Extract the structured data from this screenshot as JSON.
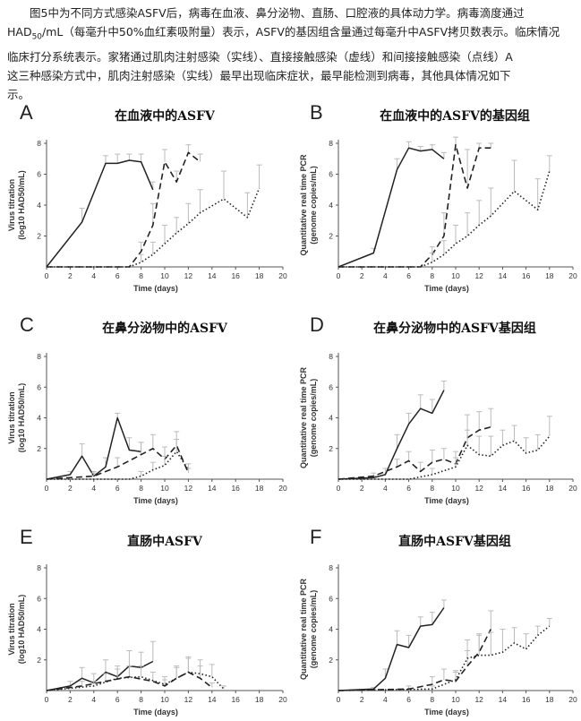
{
  "caption": {
    "line1": "图5中为不同方式感染ASFV后，病毒在血液、鼻分泌物、直肠、口腔液的具体动力学。病毒滴度通过",
    "line2a": "HAD",
    "line2sub": "50",
    "line2b": "/mL（每毫升中50%血红素吸附量）表示，ASFV的基因组含量通过每毫升中ASFV拷贝数表示。临床情况",
    "line3": "临床打分系统表示。家猪通过肌肉注射感染（实线）、直接接触感染（虚线）和间接接触感染（点线）A",
    "line4": "这三种感染方式中，肌肉注射感染（实线）最早出现临床症状，最早能检测到病毒，其他具体情况如下",
    "line5": "示。"
  },
  "colors": {
    "line": "#222222",
    "error": "#bbbbbb",
    "axis": "#555555"
  },
  "chart_data": [
    {
      "panel": "A",
      "type": "line",
      "title": "在血液中的ASFV",
      "xlabel": "Time (days)",
      "ylabel1": "Virus titration",
      "ylabel2": "(log10 HAD50/mL)",
      "xlim": [
        0,
        20
      ],
      "ylim": [
        0,
        8
      ],
      "xticks": [
        0,
        2,
        4,
        6,
        8,
        10,
        12,
        14,
        16,
        18,
        20
      ],
      "yticks": [
        2,
        4,
        6,
        8
      ],
      "series": [
        {
          "name": "intramuscular",
          "style": "solid",
          "x": [
            0,
            3,
            5,
            6,
            7,
            8,
            9
          ],
          "y": [
            0,
            2.9,
            6.7,
            6.7,
            6.9,
            6.8,
            5.0
          ],
          "err": [
            0,
            0.9,
            0.5,
            0.6,
            0.4,
            0.5,
            0.5
          ]
        },
        {
          "name": "direct contact",
          "style": "dashed",
          "x": [
            0,
            7,
            8,
            9,
            10,
            11,
            12,
            13
          ],
          "y": [
            0,
            0,
            1.0,
            2.7,
            6.8,
            5.5,
            7.4,
            6.8
          ],
          "err": [
            0,
            0,
            0.6,
            1.4,
            0.8,
            0.7,
            0.5,
            0.5
          ]
        },
        {
          "name": "indirect contact",
          "style": "dotted",
          "x": [
            0,
            7,
            8,
            9,
            10,
            11,
            12,
            13,
            15,
            17,
            18
          ],
          "y": [
            0,
            0,
            0.3,
            0.8,
            1.5,
            2.2,
            2.8,
            3.5,
            4.4,
            3.2,
            5.1
          ],
          "err": [
            0,
            0,
            0.5,
            0.8,
            1.2,
            1.0,
            1.3,
            1.5,
            1.8,
            1.6,
            1.5
          ]
        }
      ]
    },
    {
      "panel": "B",
      "type": "line",
      "title": "在血液中的ASFV的基因组",
      "xlabel": "Time (days)",
      "ylabel1": "Quantitative real time PCR",
      "ylabel2": "(genome copies/mL)",
      "xlim": [
        0,
        20
      ],
      "ylim": [
        0,
        8
      ],
      "xticks": [
        0,
        2,
        4,
        6,
        8,
        10,
        12,
        14,
        16,
        18,
        20
      ],
      "yticks": [
        2,
        4,
        6,
        8
      ],
      "series": [
        {
          "name": "intramuscular",
          "style": "solid",
          "x": [
            0,
            3,
            5,
            6,
            7,
            8,
            9
          ],
          "y": [
            0,
            0.9,
            6.3,
            7.7,
            7.5,
            7.6,
            7.0
          ],
          "err": [
            0,
            0.3,
            0.7,
            0.4,
            0.3,
            0.3,
            0.4
          ]
        },
        {
          "name": "direct contact",
          "style": "dashed",
          "x": [
            0,
            7,
            8,
            9,
            10,
            11,
            12,
            13
          ],
          "y": [
            0,
            0,
            0.8,
            2.0,
            7.9,
            5.1,
            7.7,
            7.7
          ],
          "err": [
            0,
            0,
            0.5,
            1.5,
            0.5,
            2.5,
            0.3,
            0.3
          ]
        },
        {
          "name": "indirect contact",
          "style": "dotted",
          "x": [
            0,
            7,
            8,
            9,
            10,
            11,
            12,
            13,
            15,
            17,
            18
          ],
          "y": [
            0,
            0,
            0.3,
            0.8,
            1.5,
            2.0,
            2.7,
            3.3,
            4.9,
            3.7,
            6.2
          ],
          "err": [
            0,
            0,
            0.6,
            0.9,
            1.2,
            1.5,
            1.6,
            1.8,
            2.0,
            2.0,
            1.0
          ]
        }
      ]
    },
    {
      "panel": "C",
      "type": "line",
      "title": "在鼻分泌物中的ASFV",
      "xlabel": "Time (days)",
      "ylabel1": "Virus titration",
      "ylabel2": "(log10 HAD50/mL)",
      "xlim": [
        0,
        20
      ],
      "ylim": [
        0,
        8
      ],
      "xticks": [
        0,
        2,
        4,
        6,
        8,
        10,
        12,
        14,
        16,
        18,
        20
      ],
      "yticks": [
        2,
        4,
        6,
        8
      ],
      "series": [
        {
          "name": "intramuscular",
          "style": "solid",
          "x": [
            0,
            2,
            3,
            4,
            5,
            6,
            7,
            8
          ],
          "y": [
            0,
            0.3,
            1.5,
            0.2,
            0.8,
            4.0,
            1.9,
            1.8
          ],
          "err": [
            0,
            0.2,
            0.8,
            0.3,
            0.6,
            0.3,
            0.8,
            0.6
          ]
        },
        {
          "name": "direct contact",
          "style": "dashed",
          "x": [
            0,
            4,
            6,
            8,
            9,
            10,
            11,
            12
          ],
          "y": [
            0,
            0.2,
            0.8,
            1.6,
            2.0,
            1.3,
            2.2,
            0.4
          ],
          "err": [
            0,
            0.2,
            0.6,
            0.8,
            0.9,
            0.8,
            0.9,
            0.3
          ]
        },
        {
          "name": "indirect contact",
          "style": "dotted",
          "x": [
            0,
            7,
            8,
            9,
            10,
            11,
            12
          ],
          "y": [
            0,
            0,
            0.2,
            0.6,
            0.9,
            1.8,
            0.6
          ],
          "err": [
            0,
            0,
            0.3,
            0.5,
            0.6,
            0.8,
            0.4
          ]
        }
      ]
    },
    {
      "panel": "D",
      "type": "line",
      "title": "在鼻分泌物中的ASFV基因组",
      "xlabel": "Time (days)",
      "ylabel1": "Quantitative real time PCR",
      "ylabel2": "(genome copies/mL)",
      "xlim": [
        0,
        20
      ],
      "ylim": [
        0,
        8
      ],
      "xticks": [
        0,
        2,
        4,
        6,
        8,
        10,
        12,
        14,
        16,
        18,
        20
      ],
      "yticks": [
        2,
        4,
        6,
        8
      ],
      "series": [
        {
          "name": "intramuscular",
          "style": "solid",
          "x": [
            0,
            3,
            4,
            5,
            6,
            7,
            8,
            9
          ],
          "y": [
            0,
            0.1,
            0.3,
            2.0,
            3.6,
            4.6,
            4.3,
            5.8
          ],
          "err": [
            0,
            0.1,
            0.4,
            0.9,
            0.7,
            0.9,
            0.9,
            0.6
          ]
        },
        {
          "name": "direct contact",
          "style": "dashed",
          "x": [
            0,
            3,
            5,
            6,
            7,
            8,
            9,
            10,
            11,
            12,
            13
          ],
          "y": [
            0,
            0.2,
            0.8,
            1.2,
            0.5,
            1.1,
            1.3,
            1.0,
            2.7,
            3.2,
            3.4
          ],
          "err": [
            0,
            0.2,
            0.5,
            0.6,
            0.6,
            0.8,
            0.7,
            0.8,
            1.5,
            1.2,
            1.2
          ]
        },
        {
          "name": "indirect contact",
          "style": "dotted",
          "x": [
            0,
            6,
            8,
            10,
            11,
            12,
            13,
            14,
            15,
            16,
            17,
            18
          ],
          "y": [
            0,
            0,
            0.3,
            0.8,
            2.2,
            1.6,
            1.5,
            2.2,
            2.5,
            1.7,
            1.9,
            2.8
          ],
          "err": [
            0,
            0,
            0.4,
            0.6,
            1.0,
            1.2,
            1.3,
            1.0,
            1.0,
            1.0,
            1.0,
            1.3
          ]
        }
      ]
    },
    {
      "panel": "E",
      "type": "line",
      "title": "直肠中ASFV",
      "xlabel": "Time (days)",
      "ylabel1": "Virus titration",
      "ylabel2": "(log10 HAD50/mL)",
      "xlim": [
        0,
        20
      ],
      "ylim": [
        0,
        8
      ],
      "xticks": [
        0,
        2,
        4,
        6,
        8,
        10,
        12,
        14,
        16,
        18,
        20
      ],
      "yticks": [
        2,
        4,
        6,
        8
      ],
      "series": [
        {
          "name": "intramuscular",
          "style": "solid",
          "x": [
            0,
            2,
            3,
            4,
            5,
            6,
            7,
            8,
            9
          ],
          "y": [
            0,
            0.3,
            0.8,
            0.5,
            1.2,
            0.9,
            1.6,
            1.5,
            1.9
          ],
          "err": [
            0,
            0.3,
            0.7,
            0.6,
            0.8,
            0.7,
            1.0,
            1.0,
            1.3
          ]
        },
        {
          "name": "direct contact",
          "style": "dashed",
          "x": [
            0,
            3,
            5,
            7,
            9,
            10,
            11,
            12,
            13,
            14
          ],
          "y": [
            0,
            0.3,
            0.6,
            0.9,
            0.6,
            0.3,
            0.8,
            1.2,
            0.8,
            0.2
          ],
          "err": [
            0,
            0.3,
            0.5,
            0.7,
            0.6,
            0.4,
            0.8,
            1.0,
            0.8,
            0.3
          ]
        },
        {
          "name": "indirect contact",
          "style": "dotted",
          "x": [
            0,
            4,
            6,
            8,
            10,
            11,
            12,
            13,
            14,
            15
          ],
          "y": [
            0,
            0.3,
            0.8,
            0.9,
            0.4,
            0.8,
            1.2,
            1.1,
            0.9,
            0.1
          ],
          "err": [
            0,
            0.3,
            0.6,
            0.7,
            0.5,
            0.7,
            0.9,
            0.9,
            0.8,
            0.2
          ]
        }
      ]
    },
    {
      "panel": "F",
      "type": "line",
      "title": "直肠中ASFV基因组",
      "xlabel": "Time (days)",
      "ylabel1": "Quantitative real time PCR",
      "ylabel2": "(genome copies/mL)",
      "xlim": [
        0,
        20
      ],
      "ylim": [
        0,
        8
      ],
      "xticks": [
        0,
        2,
        4,
        6,
        8,
        10,
        12,
        14,
        16,
        18,
        20
      ],
      "yticks": [
        2,
        4,
        6,
        8
      ],
      "series": [
        {
          "name": "intramuscular",
          "style": "solid",
          "x": [
            0,
            3,
            4,
            5,
            6,
            7,
            8,
            9
          ],
          "y": [
            0,
            0.1,
            0.8,
            3.0,
            2.8,
            4.2,
            4.3,
            5.4
          ],
          "err": [
            0,
            0.1,
            0.6,
            0.9,
            0.8,
            0.6,
            0.8,
            0.5
          ]
        },
        {
          "name": "direct contact",
          "style": "dashed",
          "x": [
            0,
            6,
            8,
            9,
            10,
            11,
            12,
            13
          ],
          "y": [
            0,
            0.1,
            0.4,
            0.7,
            0.6,
            1.6,
            2.5,
            4.0
          ],
          "err": [
            0,
            0.2,
            0.5,
            0.7,
            0.6,
            1.0,
            1.2,
            1.2
          ]
        },
        {
          "name": "indirect contact",
          "style": "dotted",
          "x": [
            0,
            8,
            10,
            11,
            12,
            13,
            14,
            15,
            16,
            17,
            18
          ],
          "y": [
            0,
            0.1,
            0.7,
            2.1,
            2.3,
            2.3,
            2.5,
            3.1,
            2.7,
            3.6,
            4.2
          ],
          "err": [
            0,
            0.2,
            0.6,
            1.2,
            1.3,
            1.5,
            1.5,
            1.0,
            1.0,
            0.6,
            0.5
          ]
        }
      ]
    }
  ]
}
